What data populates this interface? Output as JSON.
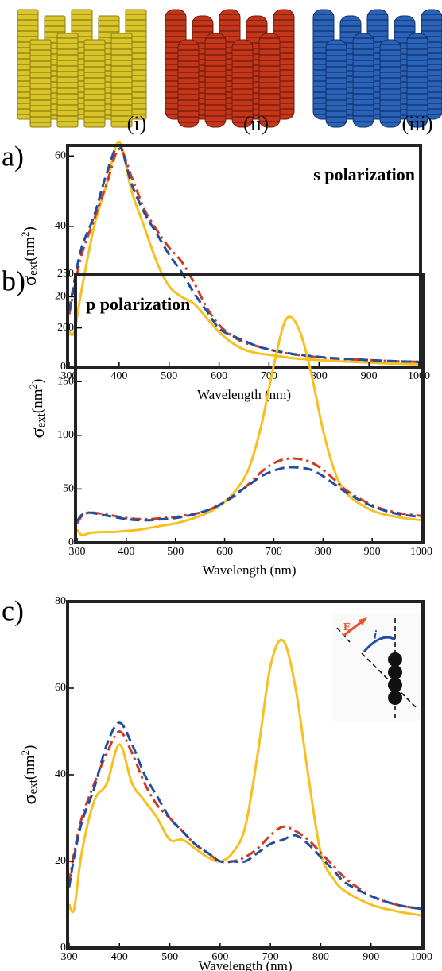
{
  "images": {
    "labels": [
      "(i)",
      "(ii)",
      "(iii)"
    ]
  },
  "chart_data": [
    {
      "type": "line",
      "panel_label": "a)",
      "annotation": "s polarization",
      "xlabel": "Wavelength (nm)",
      "ylabel": [
        "σ",
        "ext",
        "(nm",
        "2",
        ")"
      ],
      "xlim": [
        300,
        1000
      ],
      "xticks": [
        300,
        400,
        500,
        600,
        700,
        800,
        900,
        1000
      ],
      "ylim": [
        0,
        63
      ],
      "yticks": [
        0,
        20,
        40,
        60
      ],
      "x": [
        300,
        310,
        325,
        350,
        375,
        400,
        425,
        450,
        475,
        500,
        525,
        550,
        575,
        600,
        625,
        650,
        675,
        700,
        725,
        750,
        775,
        800,
        825,
        850,
        900,
        950,
        1000
      ],
      "series": [
        {
          "color": "#f5c020",
          "dash": "solid",
          "values": [
            10,
            10,
            22,
            40,
            52,
            64,
            50,
            40,
            30,
            23,
            20,
            18,
            14,
            10,
            7,
            5,
            4,
            3.5,
            3,
            2.5,
            2.2,
            2,
            1.8,
            1.6,
            1.3,
            1,
            0.8
          ]
        },
        {
          "color": "#d23a1e",
          "dash": "dashdot",
          "values": [
            15,
            22,
            32,
            42,
            52,
            62,
            54,
            45,
            39,
            34,
            30,
            24,
            17,
            12,
            9,
            7,
            6,
            5,
            4.2,
            3.6,
            3.2,
            2.8,
            2.5,
            2.3,
            2,
            1.7,
            1.5
          ]
        },
        {
          "color": "#1f4ea3",
          "dash": "dashed",
          "values": [
            16,
            24,
            34,
            43,
            55,
            63,
            52,
            44,
            38,
            32,
            27,
            21,
            16,
            11,
            9,
            7.5,
            6,
            5,
            4.3,
            3.7,
            3.3,
            2.9,
            2.6,
            2.4,
            2,
            1.7,
            1.5
          ]
        }
      ]
    },
    {
      "type": "line",
      "panel_label": "b)",
      "annotation": "p polarization",
      "xlabel": "Wavelength (nm)",
      "ylabel": [
        "σ",
        "ext",
        "(nm",
        "2",
        ")"
      ],
      "xlim": [
        300,
        1000
      ],
      "xticks": [
        300,
        400,
        500,
        600,
        700,
        800,
        900,
        1000
      ],
      "ylim": [
        0,
        250
      ],
      "yticks": [
        0,
        50,
        100,
        150,
        200,
        250
      ],
      "x": [
        300,
        310,
        325,
        350,
        375,
        400,
        425,
        450,
        475,
        500,
        525,
        550,
        575,
        600,
        625,
        650,
        675,
        700,
        725,
        750,
        775,
        800,
        825,
        850,
        900,
        950,
        1000
      ],
      "series": [
        {
          "color": "#f5c020",
          "dash": "solid",
          "values": [
            12,
            7,
            9,
            10,
            10,
            11,
            12,
            14,
            16,
            18,
            21,
            25,
            30,
            38,
            50,
            70,
            110,
            165,
            208,
            200,
            160,
            105,
            65,
            45,
            30,
            24,
            21
          ]
        },
        {
          "color": "#d23a1e",
          "dash": "dashdot",
          "values": [
            18,
            25,
            28,
            27,
            25,
            23,
            22,
            22,
            23,
            24,
            26,
            28,
            32,
            38,
            45,
            55,
            66,
            74,
            78,
            78,
            75,
            68,
            58,
            48,
            35,
            28,
            25
          ]
        },
        {
          "color": "#1f4ea3",
          "dash": "dashed",
          "values": [
            20,
            26,
            28,
            26,
            24,
            22,
            21,
            21,
            22,
            23,
            25,
            28,
            32,
            38,
            46,
            54,
            62,
            67,
            70,
            70,
            68,
            62,
            54,
            46,
            34,
            27,
            24
          ]
        }
      ]
    },
    {
      "type": "line",
      "panel_label": "c)",
      "xlabel": "Wavelength (nm)",
      "ylabel": [
        "σ",
        "ext",
        "(nm",
        "2",
        ")"
      ],
      "inset_labels": [
        "E",
        "i"
      ],
      "xlim": [
        300,
        1000
      ],
      "xticks": [
        300,
        400,
        500,
        600,
        700,
        800,
        900,
        1000
      ],
      "ylim": [
        0,
        80
      ],
      "yticks": [
        0,
        20,
        40,
        60,
        80
      ],
      "x": [
        300,
        310,
        325,
        350,
        375,
        400,
        425,
        450,
        475,
        500,
        525,
        550,
        575,
        600,
        625,
        650,
        675,
        700,
        725,
        750,
        775,
        800,
        825,
        850,
        900,
        950,
        1000
      ],
      "series": [
        {
          "color": "#f5c020",
          "dash": "solid",
          "values": [
            10,
            9,
            22,
            34,
            38,
            47,
            38,
            34,
            30,
            25,
            25,
            23,
            21,
            20,
            22,
            28,
            45,
            65,
            71,
            60,
            40,
            22,
            16,
            13,
            10,
            8.5,
            7.5
          ]
        },
        {
          "color": "#d23a1e",
          "dash": "dashdot",
          "values": [
            15,
            22,
            30,
            38,
            45,
            50,
            45,
            38,
            33,
            30,
            27,
            24,
            22,
            20,
            20,
            21,
            23,
            26,
            28,
            27,
            25,
            22,
            19,
            16,
            12,
            10,
            9
          ]
        },
        {
          "color": "#1f4ea3",
          "dash": "dashed",
          "values": [
            14,
            21,
            29,
            37,
            47,
            52,
            47,
            40,
            35,
            30,
            27,
            24,
            22,
            20,
            20,
            20,
            22,
            24,
            25,
            26,
            24,
            21,
            18,
            15,
            12,
            10,
            9
          ]
        }
      ]
    }
  ]
}
